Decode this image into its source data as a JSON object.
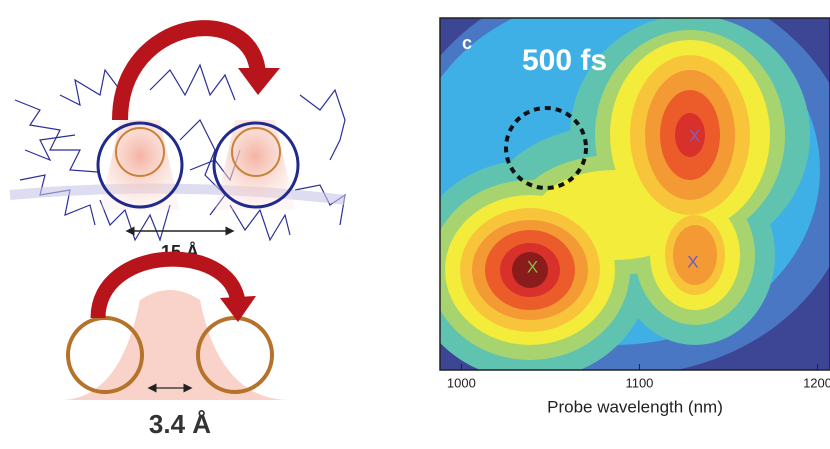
{
  "diagram": {
    "top_distance": "15 Å",
    "bottom_distance": "3.4 Å"
  },
  "chart_data": {
    "type": "contour",
    "panel_label": "c",
    "annotation": "500 fs",
    "xlabel": "Probe wavelength (nm)",
    "xlim": [
      988,
      1207
    ],
    "xticks": [
      1000,
      1100,
      1200
    ],
    "markers": [
      {
        "label": "X",
        "x": 1040,
        "color": "#7bc142"
      },
      {
        "label": "X",
        "x": 1131,
        "color": "#8a5bbf"
      },
      {
        "label": "X",
        "x": 1130,
        "color": "#6a5bbf"
      }
    ]
  }
}
